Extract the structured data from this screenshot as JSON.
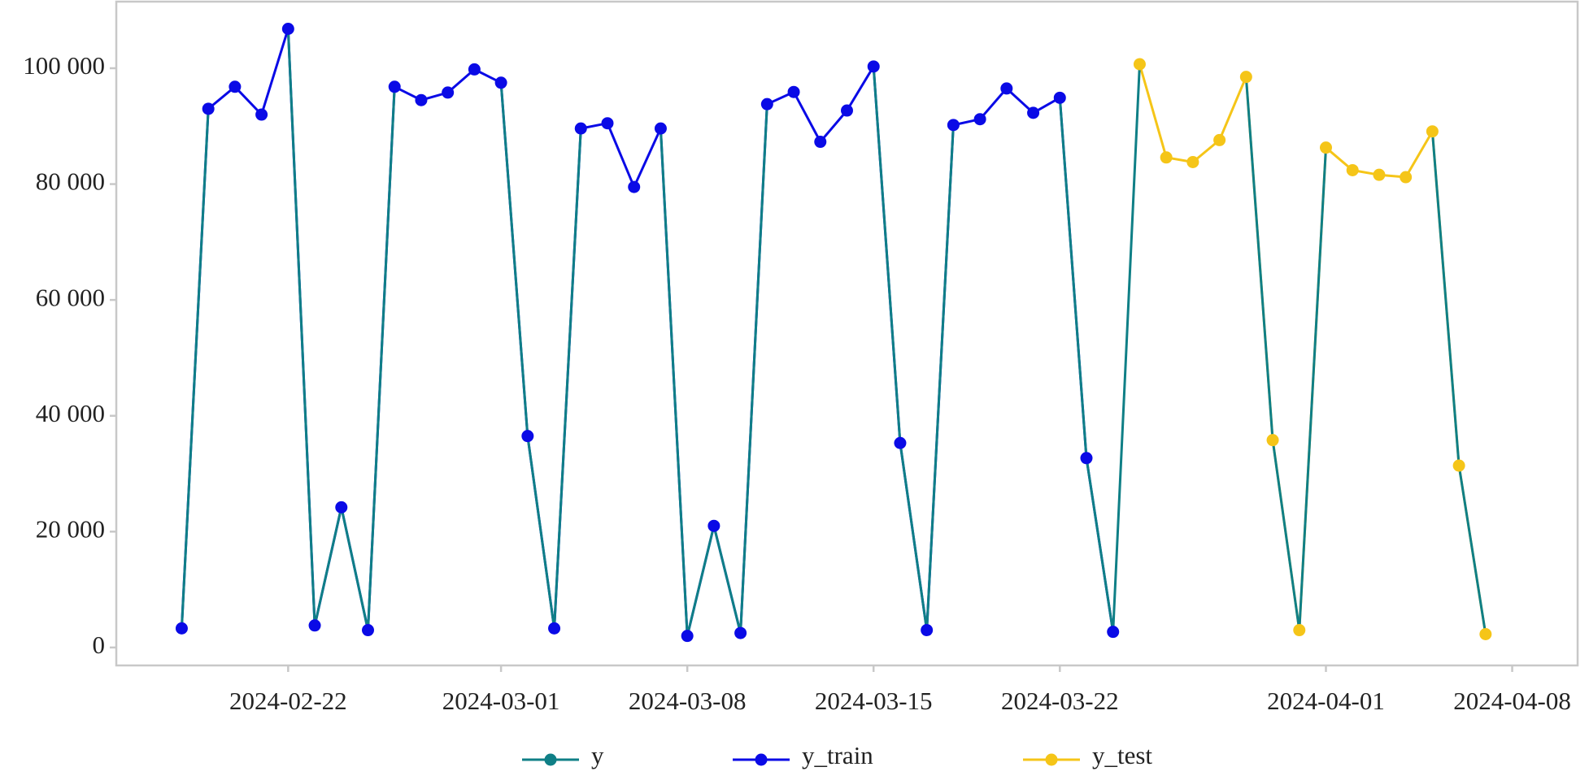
{
  "chart_data": {
    "type": "line",
    "x": [
      "2024-02-18",
      "2024-02-19",
      "2024-02-20",
      "2024-02-21",
      "2024-02-22",
      "2024-02-23",
      "2024-02-24",
      "2024-02-25",
      "2024-02-26",
      "2024-02-27",
      "2024-02-28",
      "2024-02-29",
      "2024-03-01",
      "2024-03-02",
      "2024-03-03",
      "2024-03-04",
      "2024-03-05",
      "2024-03-06",
      "2024-03-07",
      "2024-03-08",
      "2024-03-09",
      "2024-03-10",
      "2024-03-11",
      "2024-03-12",
      "2024-03-13",
      "2024-03-14",
      "2024-03-15",
      "2024-03-16",
      "2024-03-17",
      "2024-03-18",
      "2024-03-19",
      "2024-03-20",
      "2024-03-21",
      "2024-03-22",
      "2024-03-23",
      "2024-03-24",
      "2024-03-25",
      "2024-03-26",
      "2024-03-27",
      "2024-03-28",
      "2024-03-29",
      "2024-03-30",
      "2024-03-31",
      "2024-04-01",
      "2024-04-02",
      "2024-04-03",
      "2024-04-04",
      "2024-04-05",
      "2024-04-06",
      "2024-04-07"
    ],
    "series": [
      {
        "name": "y",
        "color": "#0f7f86",
        "values": [
          3300,
          93000,
          96800,
          92000,
          106800,
          3800,
          24200,
          3000,
          96800,
          94500,
          95800,
          99800,
          97500,
          36500,
          3300,
          89600,
          90500,
          79500,
          89600,
          2000,
          21000,
          2500,
          93800,
          95900,
          87300,
          92700,
          100300,
          35300,
          3000,
          90200,
          91200,
          96500,
          92300,
          94900,
          32700,
          2700,
          100700,
          84600,
          83800,
          87600,
          98500,
          35800,
          3000,
          86300,
          82400,
          81600,
          81200,
          89100,
          31400,
          2300
        ]
      },
      {
        "name": "y_train",
        "color": "#0a0ae6",
        "values": [
          3300,
          93000,
          96800,
          92000,
          106800,
          3800,
          24200,
          3000,
          96800,
          94500,
          95800,
          99800,
          97500,
          36500,
          3300,
          89600,
          90500,
          79500,
          89600,
          2000,
          21000,
          2500,
          93800,
          95900,
          87300,
          92700,
          100300,
          35300,
          3000,
          90200,
          91200,
          96500,
          92300,
          94900,
          32700,
          2700,
          null,
          null,
          null,
          null,
          null,
          null,
          null,
          null,
          null,
          null,
          null,
          null,
          null,
          null
        ]
      },
      {
        "name": "y_test",
        "color": "#f5c518",
        "values": [
          null,
          null,
          null,
          null,
          null,
          null,
          null,
          null,
          null,
          null,
          null,
          null,
          null,
          null,
          null,
          null,
          null,
          null,
          null,
          null,
          null,
          null,
          null,
          null,
          null,
          null,
          null,
          null,
          null,
          null,
          null,
          null,
          null,
          null,
          null,
          null,
          100700,
          84600,
          83800,
          87600,
          98500,
          35800,
          3000,
          86300,
          82400,
          81600,
          81200,
          89100,
          31400,
          2300
        ]
      }
    ],
    "xlim": [
      "2024-02-15T13:00",
      "2024-04-10T11:00"
    ],
    "xticks": [
      "2024-02-22",
      "2024-03-01",
      "2024-03-08",
      "2024-03-15",
      "2024-03-22",
      "2024-04-01",
      "2024-04-08"
    ],
    "ylim": [
      -3100,
      111500
    ],
    "yticks": [
      0,
      {
        "value": 20000,
        "label": "20 000"
      },
      {
        "value": 40000,
        "label": "40 000"
      },
      {
        "value": 60000,
        "label": "60 000"
      },
      {
        "value": 80000,
        "label": "80 000"
      },
      {
        "value": 100000,
        "label": "100 000"
      }
    ],
    "grid": false,
    "legend": "bottom"
  }
}
